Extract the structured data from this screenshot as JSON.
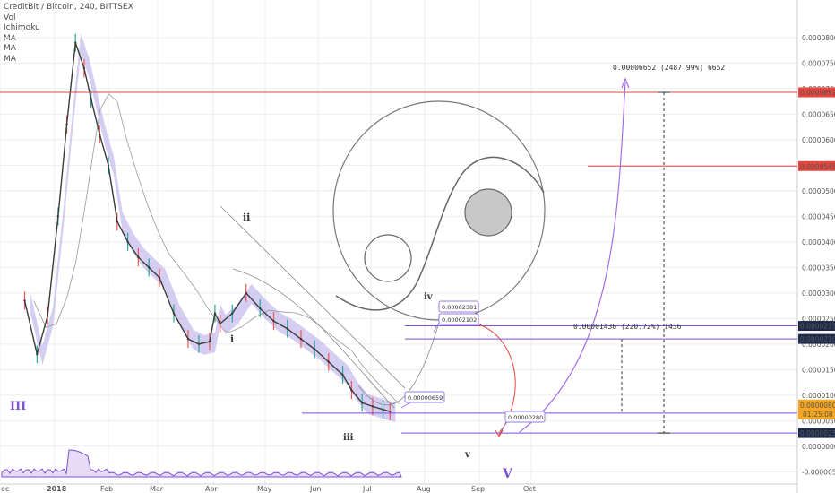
{
  "legend": {
    "title": "CreditBit / Bitcoin, 240, BITTSEX",
    "indicators": [
      "Vol",
      "Ichimoku",
      "MA",
      "MA",
      "MA"
    ]
  },
  "colors": {
    "purple": "#7b4fd6",
    "purple_light": "#b2a6e8",
    "ichimoku_blue": "#9fb6f0",
    "red": "#e8453c",
    "grid": "#eeeeee",
    "price_tag": "#1e2a4a",
    "current_price": "#f5a623"
  },
  "chart_data": {
    "type": "line",
    "title": "CreditBit / Bitcoin, 240, BITTSEX",
    "x_ticks": [
      "ec",
      "2018",
      "Feb",
      "Mar",
      "Apr",
      "May",
      "Jun",
      "Jul",
      "Aug",
      "Sep",
      "Oct"
    ],
    "y_ticks": [
      "0.00008000",
      "0.00007500",
      "0.00007000",
      "0.00006500",
      "0.00006000",
      "0.00005500",
      "0.00005000",
      "0.00004500",
      "0.00004000",
      "0.00003500",
      "0.00003000",
      "0.00002500",
      "0.00002000",
      "0.00001500",
      "0.00001000",
      "0.00000500",
      "0.00000000",
      "-0.00000500"
    ],
    "ylim": [
      -6e-06,
      8.35e-05
    ],
    "price_series": {
      "name": "CreditBit / Bitcoin",
      "x": [
        "2017-12-15",
        "2017-12-22",
        "2017-12-28",
        "2018-01-03",
        "2018-01-08",
        "2018-01-13",
        "2018-01-18",
        "2018-01-22",
        "2018-01-27",
        "2018-02-01",
        "2018-02-06",
        "2018-02-12",
        "2018-02-18",
        "2018-02-24",
        "2018-03-02",
        "2018-03-10",
        "2018-03-18",
        "2018-03-24",
        "2018-03-30",
        "2018-04-02",
        "2018-04-05",
        "2018-04-12",
        "2018-04-20",
        "2018-04-28",
        "2018-05-06",
        "2018-05-14",
        "2018-05-22",
        "2018-05-30",
        "2018-06-07",
        "2018-06-15",
        "2018-06-20",
        "2018-06-26",
        "2018-07-02",
        "2018-07-08",
        "2018-07-12"
      ],
      "y": [
        2.85e-05,
        1.8e-05,
        2.55e-05,
        4.5e-05,
        6.3e-05,
        7.9e-05,
        7.4e-05,
        6.8e-05,
        6.1e-05,
        5.5e-05,
        4.4e-05,
        4e-05,
        3.7e-05,
        3.5e-05,
        3.3e-05,
        2.6e-05,
        2.1e-05,
        2e-05,
        2.05e-05,
        2.6e-05,
        2.4e-05,
        2.6e-05,
        3e-05,
        2.7e-05,
        2.45e-05,
        2.3e-05,
        2.1e-05,
        1.9e-05,
        1.65e-05,
        1.4e-05,
        1.1e-05,
        8.5e-06,
        7.8e-06,
        7.2e-06,
        6.8e-06
      ]
    },
    "price_levels": [
      {
        "label": "0.00006928",
        "value": 6.928e-05,
        "color": "#e8453c",
        "tag_color": "#e8453c"
      },
      {
        "label": "0.00005485",
        "value": 5.485e-05,
        "color": "#e8453c",
        "tag_color": "#e8453c"
      },
      {
        "label": "0.00002356",
        "value": 2.356e-05,
        "color": "#7b4fd6",
        "tag_color": "#1e2a4a"
      },
      {
        "label": "0.00002101",
        "value": 2.101e-05,
        "color": "#7b4fd6",
        "tag_color": "#1e2a4a"
      },
      {
        "label": "0.00000649",
        "value": 6.49e-06,
        "color": "#7b4fd6",
        "tag_color": "#1e2a4a"
      },
      {
        "label": "0.00000258",
        "value": 2.58e-06,
        "color": "#7b4fd6",
        "tag_color": "#1e2a4a"
      }
    ],
    "current_price": {
      "label": "0.00000807",
      "countdown": "01:25:08"
    },
    "callouts": [
      {
        "text": "0.00002381"
      },
      {
        "text": "0.00002102"
      },
      {
        "text": "0.00000659"
      },
      {
        "text": "0.00000280"
      }
    ],
    "measurements": [
      {
        "text": "0.00006652 (2487.99%) 6652"
      },
      {
        "text": "0.00001436 (220.72%) 1436"
      }
    ],
    "wave_labels": [
      "III",
      "i",
      "ii",
      "iii",
      "iv",
      "v",
      "V"
    ]
  }
}
